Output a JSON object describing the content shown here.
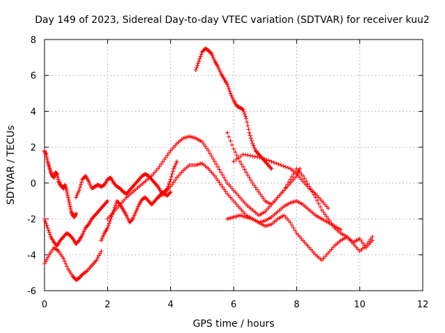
{
  "chart_data": {
    "type": "scatter",
    "title": "Day 149 of 2023, Sidereal Day-to-day VTEC variation (SDTVAR) for receiver kuu2",
    "xlabel": "GPS time / hours",
    "ylabel": "SDTVAR / TECUs",
    "xlim": [
      0,
      12
    ],
    "ylim": [
      -6,
      8
    ],
    "xticks": [
      "0",
      "2",
      "4",
      "6",
      "8",
      "10",
      "12"
    ],
    "yticks": [
      "-6",
      "-4",
      "-2",
      "0",
      "2",
      "4",
      "6",
      "8"
    ],
    "grid": true,
    "marker": "+",
    "color": "#ff0000",
    "series": [
      {
        "x": [
          4.8,
          4.9,
          5.0,
          5.1,
          5.2,
          5.3,
          5.4,
          5.5,
          5.6,
          5.7,
          5.8,
          5.9,
          6.0,
          6.1,
          6.2,
          6.3,
          6.4,
          6.5,
          6.6,
          6.7,
          6.8,
          6.9,
          7.0,
          7.1,
          7.2
        ],
        "y": [
          6.3,
          6.8,
          7.3,
          7.5,
          7.4,
          7.2,
          6.8,
          6.5,
          6.1,
          5.8,
          5.5,
          5.0,
          4.6,
          4.3,
          4.2,
          4.1,
          3.6,
          2.8,
          2.2,
          1.8,
          1.6,
          1.4,
          1.2,
          1.0,
          0.8
        ]
      },
      {
        "x": [
          0.0,
          0.05,
          0.1,
          0.15,
          0.2,
          0.25,
          0.3,
          0.35,
          0.4,
          0.45,
          0.5,
          0.55,
          0.6,
          0.65,
          0.7,
          0.75,
          0.8,
          0.85,
          0.9,
          0.95,
          1.0
        ],
        "y": [
          1.8,
          1.6,
          1.2,
          0.9,
          0.6,
          0.4,
          0.3,
          0.6,
          0.5,
          0.1,
          -0.1,
          -0.2,
          -0.3,
          -0.1,
          -0.4,
          -0.8,
          -1.2,
          -1.6,
          -1.8,
          -1.9,
          -1.7
        ]
      },
      {
        "x": [
          0.0,
          0.1,
          0.2,
          0.3,
          0.4,
          0.5,
          0.6,
          0.7,
          0.8,
          0.9,
          1.0,
          1.1,
          1.2,
          1.3,
          1.4,
          1.5,
          1.6,
          1.7,
          1.8,
          1.9,
          2.0
        ],
        "y": [
          -2.0,
          -2.5,
          -3.0,
          -3.3,
          -3.5,
          -3.2,
          -3.0,
          -2.8,
          -2.9,
          -3.1,
          -3.4,
          -3.2,
          -2.9,
          -2.5,
          -2.3,
          -2.0,
          -1.8,
          -1.6,
          -1.4,
          -1.2,
          -1.0
        ]
      },
      {
        "x": [
          0.0,
          0.15,
          0.3,
          0.45,
          0.6,
          0.75,
          0.9,
          1.0,
          1.1,
          1.2,
          1.35,
          1.5,
          1.65,
          1.8
        ],
        "y": [
          -4.5,
          -4.0,
          -3.6,
          -3.8,
          -4.2,
          -4.8,
          -5.2,
          -5.4,
          -5.3,
          -5.1,
          -4.9,
          -4.6,
          -4.3,
          -3.8
        ]
      },
      {
        "x": [
          1.0,
          1.1,
          1.2,
          1.3,
          1.4,
          1.5,
          1.6,
          1.7,
          1.8,
          1.9,
          2.0,
          2.1,
          2.2,
          2.3,
          2.4,
          2.5,
          2.6,
          2.7,
          2.8,
          2.9,
          3.0,
          3.1,
          3.2,
          3.3,
          3.4,
          3.5,
          3.6,
          3.7,
          3.8,
          3.9,
          4.0
        ],
        "y": [
          -0.8,
          -0.4,
          0.2,
          0.4,
          0.1,
          -0.3,
          -0.2,
          -0.1,
          -0.2,
          -0.1,
          0.2,
          0.3,
          0.0,
          -0.2,
          -0.3,
          -0.5,
          -0.6,
          -0.4,
          -0.2,
          0.0,
          0.2,
          0.4,
          0.5,
          0.4,
          0.2,
          0.0,
          -0.2,
          -0.5,
          -0.6,
          -0.7,
          -0.5
        ]
      },
      {
        "x": [
          1.8,
          1.9,
          2.0,
          2.1,
          2.2,
          2.3,
          2.4,
          2.5,
          2.6,
          2.7,
          2.8,
          2.9,
          3.0,
          3.1,
          3.2,
          3.3,
          3.4,
          3.5,
          3.6,
          3.7,
          3.8,
          3.9,
          4.0,
          4.1,
          4.2
        ],
        "y": [
          -3.2,
          -2.8,
          -2.5,
          -2.0,
          -1.5,
          -1.0,
          -1.2,
          -1.5,
          -1.8,
          -2.2,
          -2.0,
          -1.6,
          -1.2,
          -0.9,
          -0.8,
          -1.0,
          -1.2,
          -1.0,
          -0.8,
          -0.6,
          -0.5,
          -0.3,
          0.2,
          0.8,
          1.2
        ]
      },
      {
        "x": [
          2.0,
          2.2,
          2.4,
          2.6,
          2.8,
          3.0,
          3.2,
          3.4,
          3.6,
          3.8,
          4.0,
          4.2,
          4.4,
          4.6,
          4.8,
          5.0,
          5.2,
          5.4,
          5.6,
          5.8,
          6.0,
          6.2,
          6.4,
          6.6,
          6.8,
          7.0,
          7.2,
          7.4,
          7.6,
          7.8,
          8.0,
          8.1
        ],
        "y": [
          -2.0,
          -1.6,
          -1.2,
          -0.8,
          -0.5,
          -0.2,
          0.1,
          0.4,
          0.8,
          1.3,
          1.8,
          2.2,
          2.5,
          2.6,
          2.5,
          2.3,
          1.8,
          1.2,
          0.6,
          0.0,
          -0.4,
          -0.8,
          -1.2,
          -1.5,
          -1.8,
          -1.6,
          -1.2,
          -0.8,
          -0.4,
          0.0,
          0.4,
          0.8
        ]
      },
      {
        "x": [
          3.6,
          3.8,
          4.0,
          4.2,
          4.4,
          4.6,
          4.8,
          5.0,
          5.2,
          5.4,
          5.6,
          5.8,
          6.0,
          6.2,
          6.4,
          6.6,
          6.8,
          7.0,
          7.2,
          7.4,
          7.6,
          7.8,
          8.0,
          8.2,
          8.4,
          8.6,
          8.8,
          9.0,
          9.2,
          9.4
        ],
        "y": [
          -0.8,
          -0.6,
          -0.2,
          0.3,
          0.7,
          1.0,
          1.0,
          1.1,
          0.8,
          0.4,
          -0.1,
          -0.6,
          -1.0,
          -1.4,
          -1.8,
          -2.0,
          -2.2,
          -2.1,
          -1.9,
          -1.6,
          -1.3,
          -1.1,
          -1.0,
          -1.2,
          -1.5,
          -1.8,
          -2.0,
          -2.2,
          -2.4,
          -2.6
        ]
      },
      {
        "x": [
          5.8,
          6.0,
          6.2,
          6.4,
          6.6,
          6.8,
          7.0,
          7.2,
          7.4,
          7.6,
          7.8,
          8.0,
          8.2,
          8.4,
          8.6,
          8.8,
          9.0,
          9.2,
          9.4,
          9.6,
          9.8,
          10.0,
          10.2,
          10.4
        ],
        "y": [
          -2.0,
          -1.9,
          -1.8,
          -1.9,
          -2.0,
          -2.2,
          -2.4,
          -2.3,
          -2.0,
          -1.8,
          -2.2,
          -2.8,
          -3.2,
          -3.6,
          -4.0,
          -4.3,
          -3.9,
          -3.5,
          -3.2,
          -3.0,
          -3.4,
          -3.8,
          -3.5,
          -3.0
        ]
      },
      {
        "x": [
          5.8,
          6.0,
          6.2,
          6.4,
          6.6,
          6.8,
          7.0,
          7.2,
          7.4,
          7.6,
          7.8,
          8.0,
          8.2,
          8.4,
          8.6,
          8.8,
          9.0,
          9.2,
          9.4,
          9.6,
          9.8,
          10.0,
          10.2,
          10.4
        ],
        "y": [
          2.8,
          1.9,
          1.2,
          0.6,
          0.0,
          -0.5,
          -1.0,
          -1.2,
          -0.8,
          -0.4,
          0.2,
          0.8,
          0.4,
          -0.2,
          -0.8,
          -1.5,
          -2.0,
          -2.5,
          -2.8,
          -3.0,
          -3.3,
          -3.1,
          -3.6,
          -3.2
        ]
      },
      {
        "x": [
          6.0,
          6.3,
          6.6,
          6.9,
          7.2,
          7.5,
          7.8,
          8.0,
          8.2,
          8.4,
          8.6,
          8.8,
          9.0
        ],
        "y": [
          1.2,
          1.6,
          1.5,
          1.4,
          1.2,
          1.0,
          0.8,
          0.5,
          0.1,
          -0.3,
          -0.6,
          -1.0,
          -1.4
        ]
      }
    ]
  }
}
